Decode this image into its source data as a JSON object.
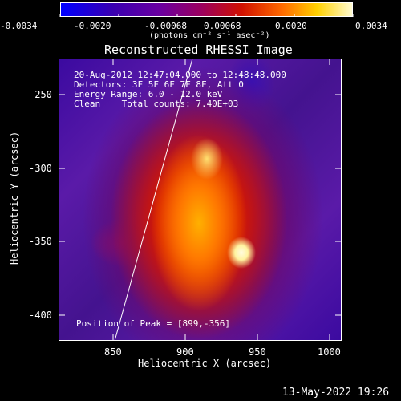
{
  "colorbar": {
    "tick_labels": [
      "-0.0034",
      "-0.0020",
      "-0.00068",
      "0.00068",
      "0.0020",
      "0.0034"
    ],
    "unit_label": "(photons cm⁻² s⁻¹ asec⁻²)",
    "colors": [
      "#0000ff",
      "#3a00b0",
      "#6a00a0",
      "#9a0060",
      "#d01000",
      "#ff6a00",
      "#ffd000",
      "#fffbd0"
    ]
  },
  "title": "Reconstructed RHESSI Image",
  "annotations": {
    "time": "20-Aug-2012 12:47:04.000 to 12:48:48.000",
    "detectors": "Detectors: 3F 5F 6F 7F 8F, Att 0",
    "energy": "Energy Range: 6.0 - 12.0 keV",
    "clean": "Clean    Total counts: 7.40E+03",
    "peak": "Position of Peak = [899,-356]"
  },
  "axes": {
    "x_label": "Heliocentric X (arcsec)",
    "y_label": "Heliocentric Y (arcsec)",
    "x_ticks": [
      "850",
      "900",
      "950",
      "1000"
    ],
    "y_ticks": [
      "-250",
      "-300",
      "-350",
      "-400"
    ]
  },
  "footer": {
    "timestamp": "13-May-2022 19:26"
  }
}
